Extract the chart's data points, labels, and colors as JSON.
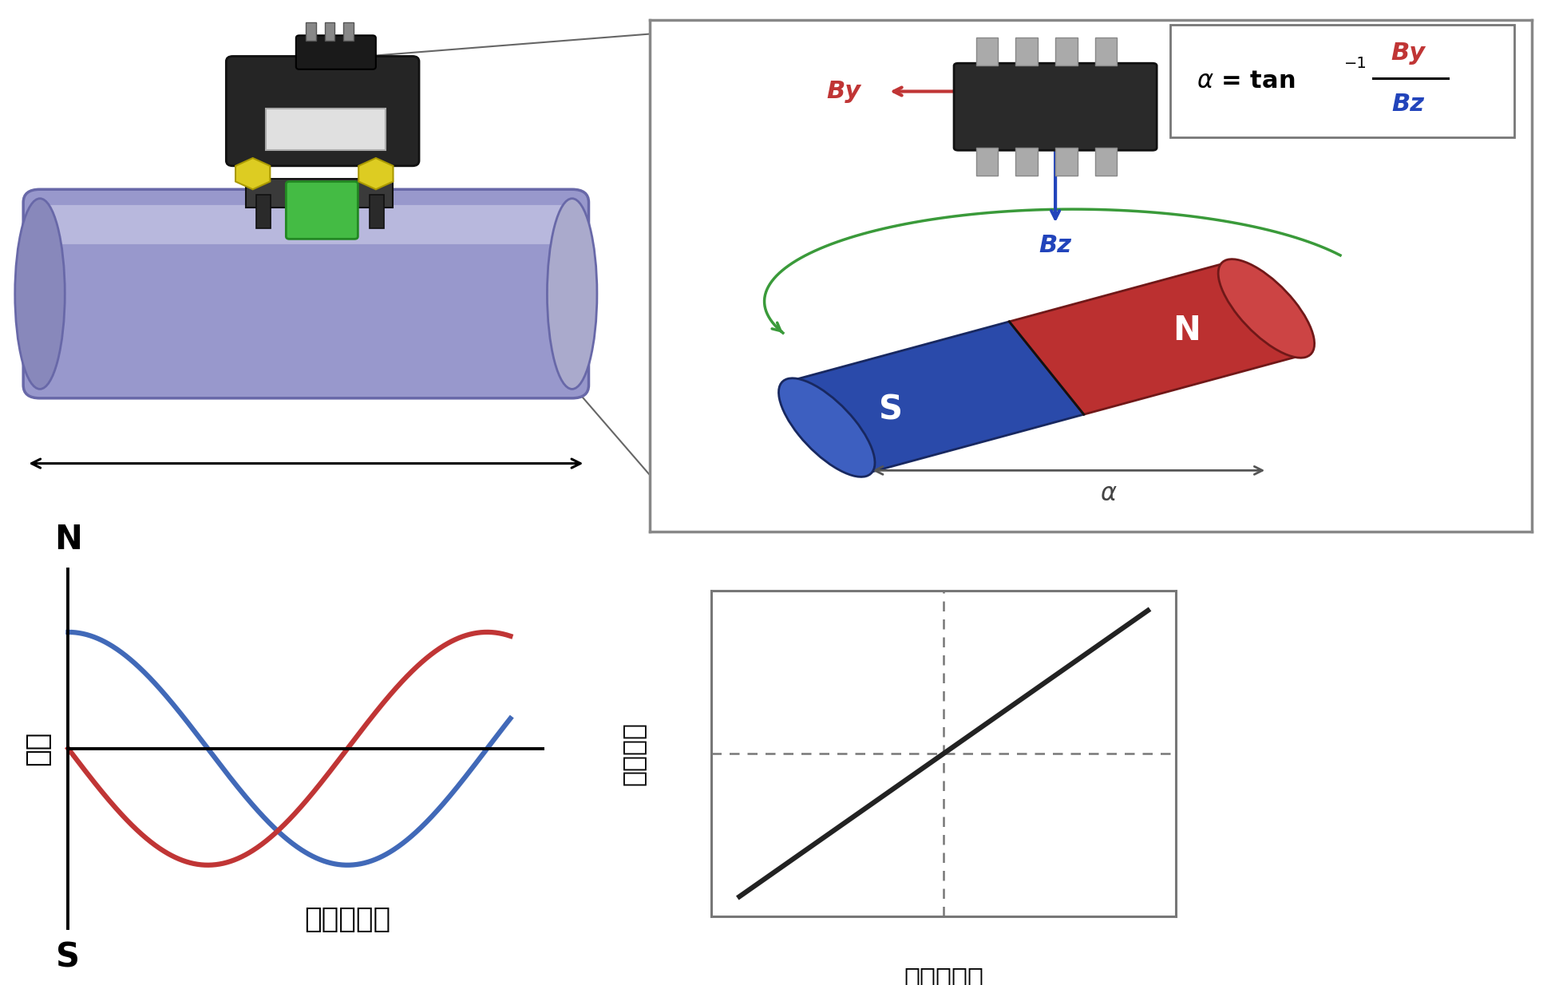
{
  "bg_color": "#ffffff",
  "left_chart": {
    "ylabel": "磁力",
    "xlabel": "ストローク",
    "N_label": "N",
    "S_label": "S",
    "blue_color": "#4169b8",
    "red_color": "#c03535",
    "axis_color": "#111111"
  },
  "right_chart": {
    "ylabel": "出力電圧",
    "xlabel": "ストローク",
    "line_color": "#222222",
    "dashed_color": "#777777",
    "box_edge_color": "#777777"
  },
  "upper_box": {
    "border_color": "#888888",
    "formula_By_color": "#c03535",
    "formula_Bz_color": "#2244bb",
    "By_label_color": "#c03535",
    "Bz_label_color": "#2244bb",
    "alpha_label": "α",
    "magnet_S_color": "#2a4aaa",
    "magnet_S_mid": "#3050b8",
    "magnet_S_dark": "#182860",
    "magnet_N_color": "#bb3030",
    "magnet_N_mid": "#cc4040",
    "magnet_N_dark": "#701818",
    "green_arrow_color": "#3a9a3a",
    "IC_body_color": "#2a2a2a",
    "IC_pin_color": "#aaaaaa"
  },
  "pipe_color": "#9898cc",
  "pipe_light": "#b8b8dd",
  "pipe_dark": "#7070aa",
  "pipe_edge_color": "#6868a8"
}
